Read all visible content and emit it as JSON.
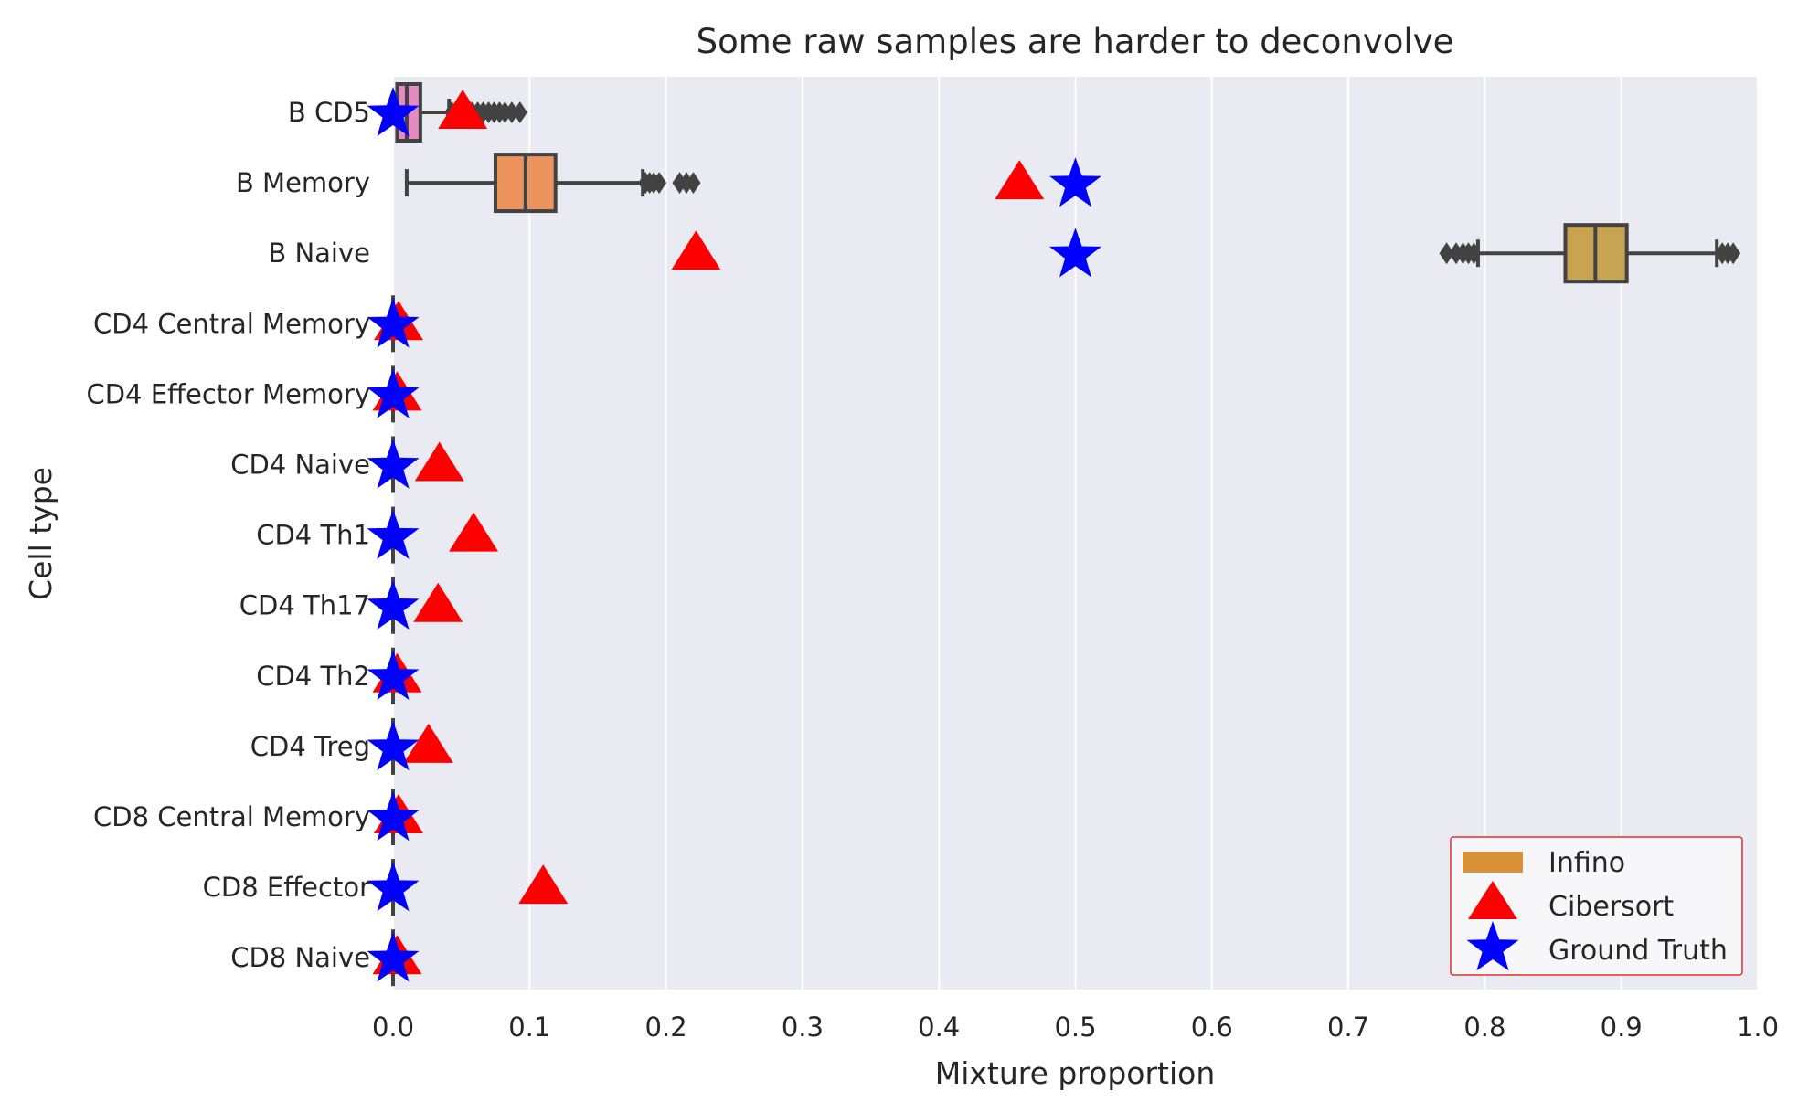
{
  "chart_data": {
    "type": "box",
    "title": "Some raw samples are harder to deconvolve",
    "xlabel": "Mixture proportion",
    "ylabel": "Cell type",
    "xlim": [
      0.0,
      1.0
    ],
    "x_ticks": [
      "0.0",
      "0.1",
      "0.2",
      "0.3",
      "0.4",
      "0.5",
      "0.6",
      "0.7",
      "0.8",
      "0.9",
      "1.0"
    ],
    "grid": true,
    "legend_position": "bottom-right",
    "categories": [
      "B CD5",
      "B Memory",
      "B Naive",
      "CD4 Central Memory",
      "CD4 Effector Memory",
      "CD4 Naive",
      "CD4 Th1",
      "CD4 Th17",
      "CD4 Th2",
      "CD4 Treg",
      "CD8 Central Memory",
      "CD8 Effector",
      "CD8 Naive"
    ],
    "series": [
      {
        "name": "Infino",
        "kind": "boxplot",
        "boxes": [
          {
            "category": "B CD5",
            "min": 0.002,
            "q1": 0.003,
            "median": 0.01,
            "q3": 0.02,
            "max": 0.041,
            "outliers": [
              0.043,
              0.048,
              0.053,
              0.058,
              0.062,
              0.066,
              0.07,
              0.074,
              0.078,
              0.082,
              0.087,
              0.093
            ],
            "color": "#e78ac3"
          },
          {
            "category": "B Memory",
            "min": 0.01,
            "q1": 0.075,
            "median": 0.097,
            "q3": 0.119,
            "max": 0.183,
            "outliers": [
              0.185,
              0.188,
              0.191,
              0.195,
              0.21,
              0.215,
              0.22
            ],
            "color": "#ec935e"
          },
          {
            "category": "B Naive",
            "min": 0.795,
            "q1": 0.859,
            "median": 0.881,
            "q3": 0.904,
            "max": 0.97,
            "outliers": [
              0.772,
              0.779,
              0.784,
              0.788,
              0.792,
              0.974,
              0.978,
              0.982
            ],
            "color": "#c8a452"
          },
          {
            "category": "CD4 Central Memory",
            "min": 0.0,
            "q1": 0.0,
            "median": 0.0,
            "q3": 0.0,
            "max": 0.0,
            "outliers": [],
            "color": "#8bc34a"
          },
          {
            "category": "CD4 Effector Memory",
            "min": 0.0,
            "q1": 0.0,
            "median": 0.0,
            "q3": 0.0,
            "max": 0.0,
            "outliers": [],
            "color": "#66bb6a"
          },
          {
            "category": "CD4 Naive",
            "min": 0.0,
            "q1": 0.0,
            "median": 0.0,
            "q3": 0.0,
            "max": 0.0,
            "outliers": [],
            "color": "#4db6ac"
          },
          {
            "category": "CD4 Th1",
            "min": 0.0,
            "q1": 0.0,
            "median": 0.0,
            "q3": 0.0,
            "max": 0.0,
            "outliers": [],
            "color": "#4dd0e1"
          },
          {
            "category": "CD4 Th17",
            "min": 0.0,
            "q1": 0.0,
            "median": 0.0,
            "q3": 0.0,
            "max": 0.0,
            "outliers": [],
            "color": "#4fc3f7"
          },
          {
            "category": "CD4 Th2",
            "min": 0.0,
            "q1": 0.0,
            "median": 0.0,
            "q3": 0.0,
            "max": 0.0,
            "outliers": [],
            "color": "#64b5f6"
          },
          {
            "category": "CD4 Treg",
            "min": 0.0,
            "q1": 0.0,
            "median": 0.0,
            "q3": 0.0,
            "max": 0.0,
            "outliers": [],
            "color": "#7986cb"
          },
          {
            "category": "CD8 Central Memory",
            "min": 0.0,
            "q1": 0.0,
            "median": 0.0,
            "q3": 0.0,
            "max": 0.0,
            "outliers": [],
            "color": "#9575cd"
          },
          {
            "category": "CD8 Effector",
            "min": 0.0,
            "q1": 0.0,
            "median": 0.0,
            "q3": 0.0,
            "max": 0.0,
            "outliers": [],
            "color": "#ba68c8"
          },
          {
            "category": "CD8 Naive",
            "min": 0.0,
            "q1": 0.0,
            "median": 0.0,
            "q3": 0.0,
            "max": 0.0,
            "outliers": [],
            "color": "#f06292"
          }
        ]
      },
      {
        "name": "Cibersort",
        "kind": "scatter",
        "marker": "triangle",
        "color": "#ff0000",
        "values": [
          0.051,
          0.459,
          0.222,
          0.004,
          0.003,
          0.034,
          0.059,
          0.033,
          0.003,
          0.026,
          0.004,
          0.11,
          0.003
        ]
      },
      {
        "name": "Ground Truth",
        "kind": "scatter",
        "marker": "star",
        "color": "#0000ff",
        "values": [
          0.0,
          0.5,
          0.5,
          0.0,
          0.0,
          0.0,
          0.0,
          0.0,
          0.0,
          0.0,
          0.0,
          0.0,
          0.0
        ]
      }
    ],
    "legend": [
      {
        "label": "Infino",
        "swatch": "#d99237"
      },
      {
        "label": "Cibersort",
        "color": "#ff0000"
      },
      {
        "label": "Ground Truth",
        "color": "#0000ff"
      }
    ],
    "colors": {
      "plot_background": "#eaeaf2",
      "grid": "#ffffff",
      "box_edge": "#424242",
      "legend_border": "#e03030"
    }
  }
}
